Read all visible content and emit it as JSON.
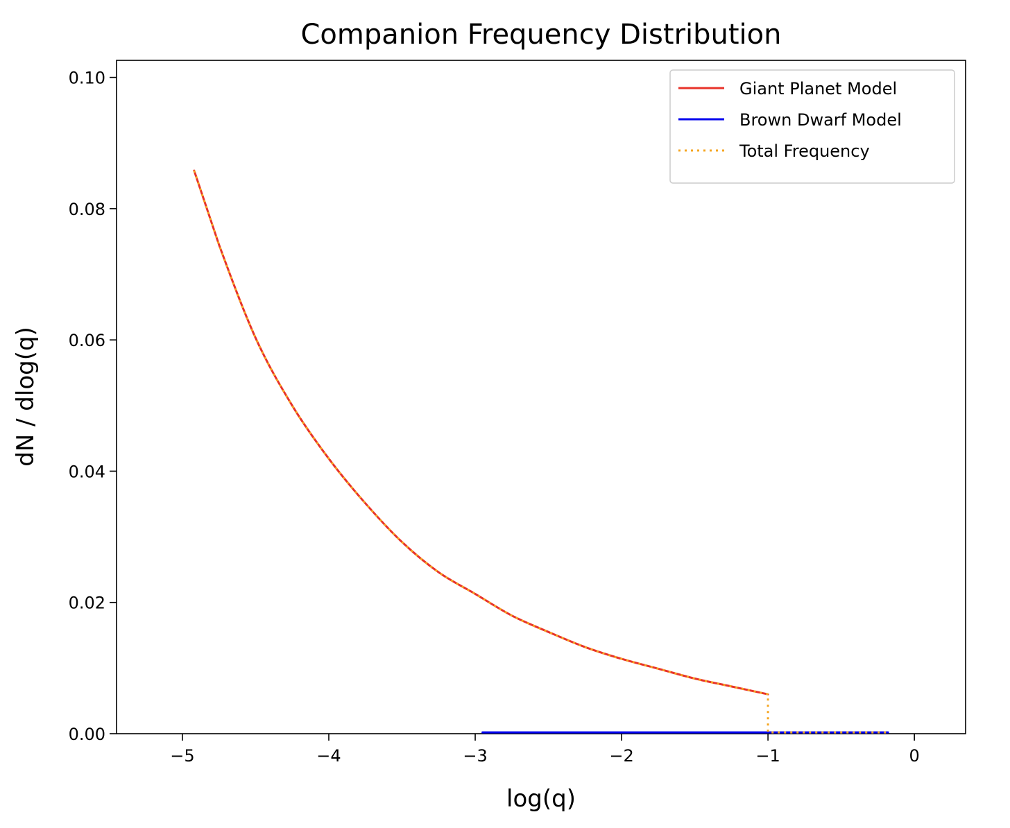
{
  "chart_data": {
    "type": "line",
    "title": "Companion Frequency Distribution",
    "xlabel": "log(q)",
    "ylabel": "dN / dlog(q)",
    "xlim": [
      -5.45,
      0.35
    ],
    "ylim": [
      0.0,
      0.1026
    ],
    "xticks": [
      -5,
      -4,
      -3,
      -2,
      -1,
      0
    ],
    "xtick_labels": [
      "−5",
      "−4",
      "−3",
      "−2",
      "−1",
      "0"
    ],
    "yticks": [
      0.0,
      0.02,
      0.04,
      0.06,
      0.08,
      0.1
    ],
    "ytick_labels": [
      "0.00",
      "0.02",
      "0.04",
      "0.06",
      "0.08",
      "0.10"
    ],
    "grid": false,
    "legend_position": "top-right",
    "series": [
      {
        "name": "Giant Planet Model",
        "color": "#e8332a",
        "style": "solid",
        "x": [
          -4.92,
          -4.75,
          -4.5,
          -4.25,
          -4.0,
          -3.75,
          -3.5,
          -3.25,
          -3.0,
          -2.75,
          -2.5,
          -2.25,
          -2.0,
          -1.75,
          -1.5,
          -1.25,
          -1.0
        ],
        "y": [
          0.0858,
          0.0745,
          0.0603,
          0.05,
          0.0419,
          0.0351,
          0.0292,
          0.0246,
          0.0213,
          0.018,
          0.0155,
          0.0132,
          0.0114,
          0.0099,
          0.0084,
          0.0072,
          0.006
        ]
      },
      {
        "name": "Brown Dwarf Model",
        "color": "#0000ee",
        "style": "solid",
        "x": [
          -2.95,
          -2.5,
          -2.0,
          -1.5,
          -1.0,
          -0.5,
          -0.18
        ],
        "y": [
          0.0002,
          0.0002,
          0.0002,
          0.0002,
          0.0002,
          0.0002,
          0.0002
        ]
      },
      {
        "name": "Total Frequency",
        "color": "#f5a623",
        "style": "dotted",
        "x": [
          -4.92,
          -4.75,
          -4.5,
          -4.25,
          -4.0,
          -3.75,
          -3.5,
          -3.25,
          -3.0,
          -2.75,
          -2.5,
          -2.25,
          -2.0,
          -1.75,
          -1.5,
          -1.25,
          -1.0,
          -1.0,
          -0.5,
          -0.18
        ],
        "y": [
          0.0858,
          0.0745,
          0.0603,
          0.05,
          0.0419,
          0.0351,
          0.0292,
          0.0246,
          0.0213,
          0.018,
          0.0155,
          0.0132,
          0.0114,
          0.0099,
          0.0084,
          0.0072,
          0.006,
          0.0002,
          0.0002,
          0.0002
        ]
      }
    ]
  }
}
